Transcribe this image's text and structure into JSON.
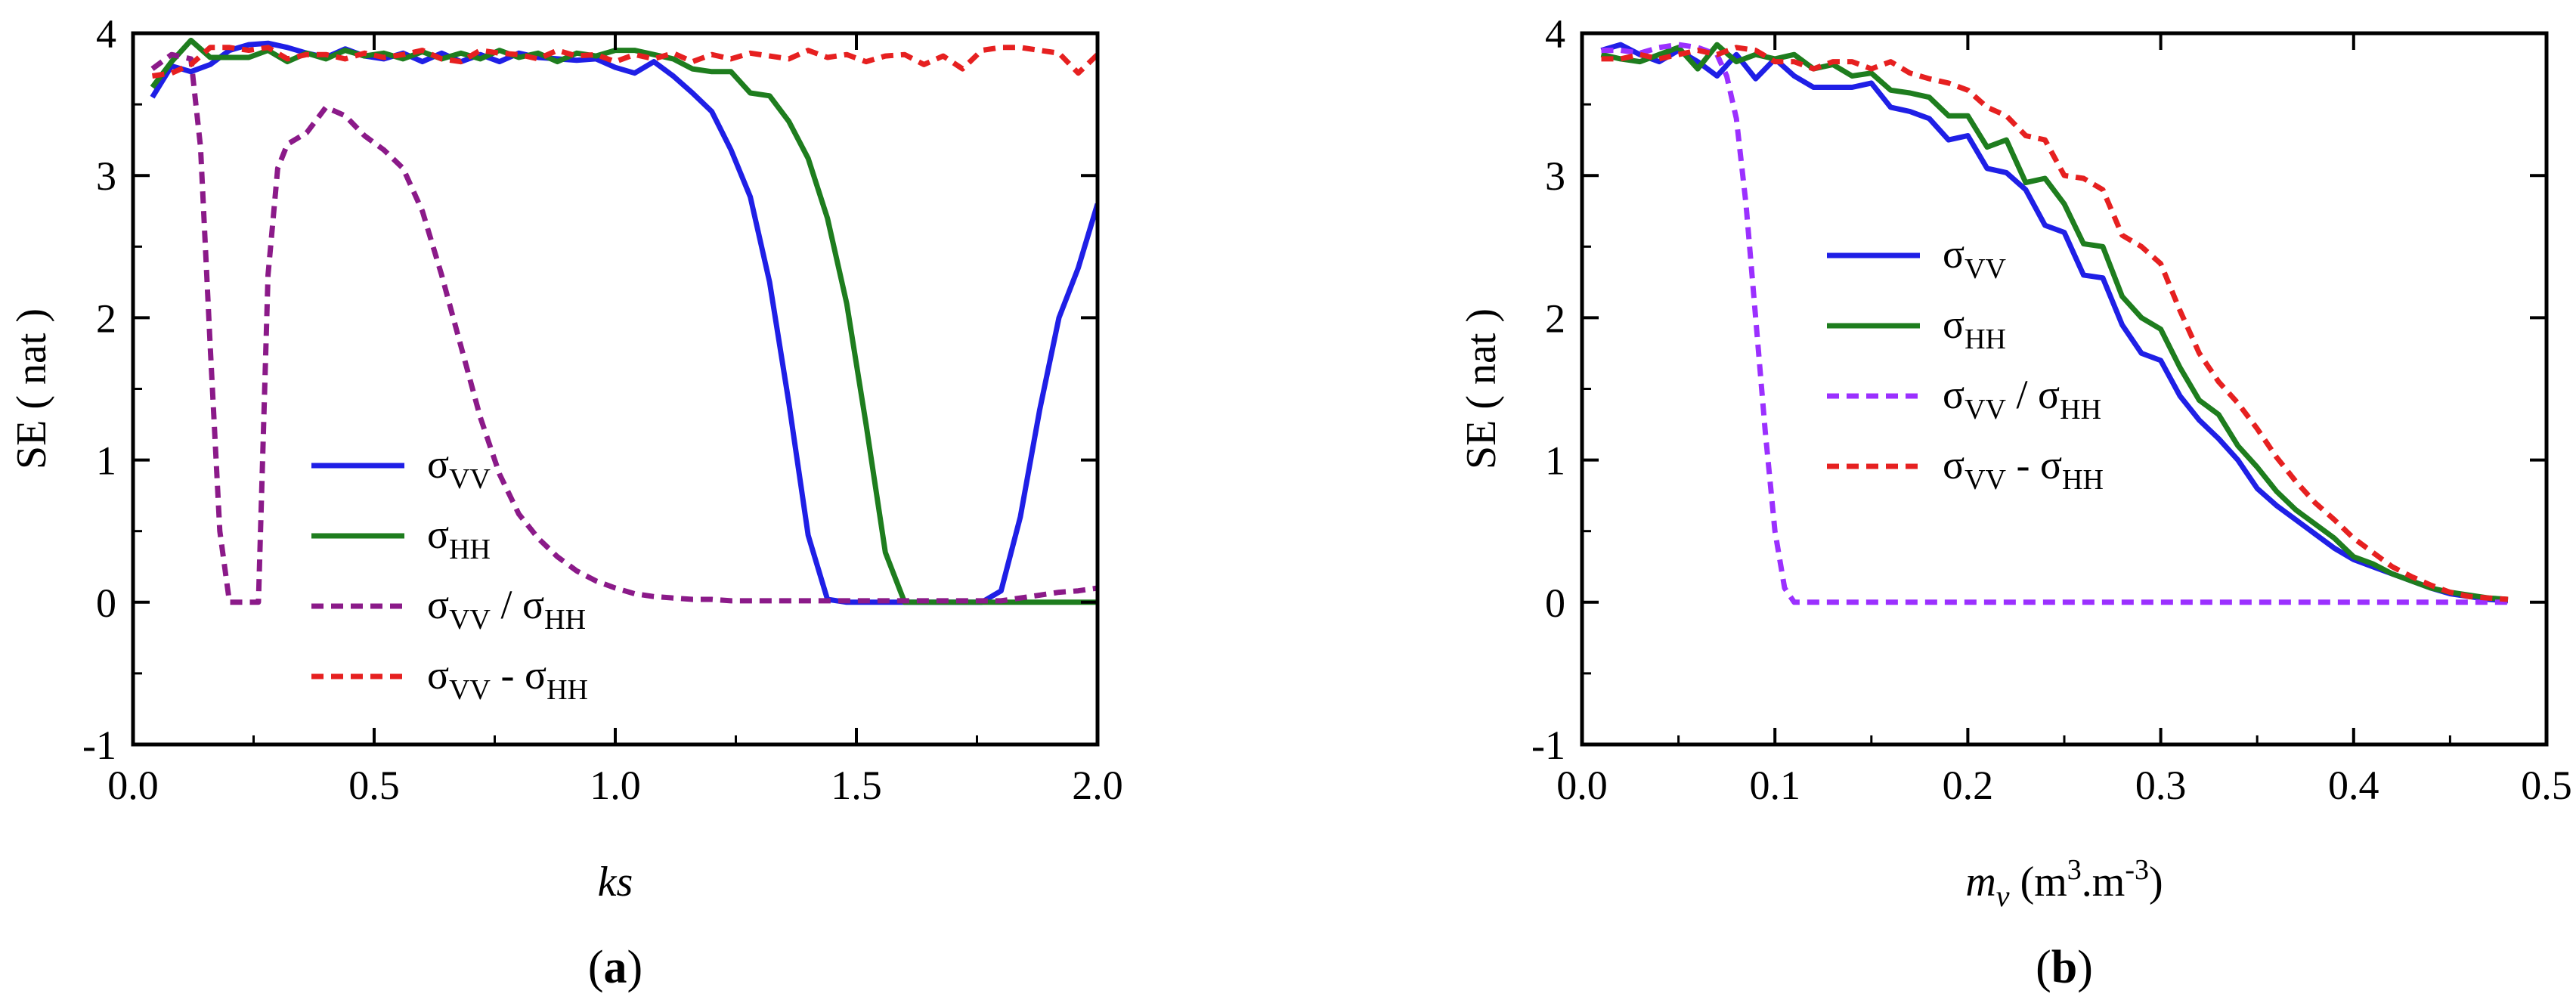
{
  "chart_data": [
    {
      "panel_label": {
        "open": "(",
        "letter": "a",
        "close": ")"
      },
      "type": "line",
      "xlabel": "ks",
      "ylabel": "SE ( nat )",
      "xlim": [
        0.0,
        2.0
      ],
      "ylim": [
        -1,
        4
      ],
      "xticks": [
        0.0,
        0.5,
        1.0,
        1.5,
        2.0
      ],
      "xtick_labels": [
        "0.0",
        "0.5",
        "1.0",
        "1.5",
        "2.0"
      ],
      "yticks": [
        -1,
        0,
        1,
        2,
        3,
        4
      ],
      "ytick_labels": [
        "-1",
        "0",
        "1",
        "2",
        "3",
        "4"
      ],
      "legend_position": "lower-left",
      "series": [
        {
          "name": "σVV",
          "label": {
            "base": "σ",
            "sub": "VV"
          },
          "color": "#1f1fe6",
          "dash": "solid",
          "x": [
            0.04,
            0.08,
            0.12,
            0.16,
            0.2,
            0.24,
            0.28,
            0.32,
            0.36,
            0.4,
            0.44,
            0.48,
            0.52,
            0.56,
            0.6,
            0.64,
            0.68,
            0.72,
            0.76,
            0.8,
            0.84,
            0.88,
            0.92,
            0.96,
            1.0,
            1.04,
            1.08,
            1.12,
            1.16,
            1.2,
            1.24,
            1.28,
            1.32,
            1.36,
            1.4,
            1.44,
            1.48,
            1.52,
            1.56,
            1.6,
            1.64,
            1.68,
            1.72,
            1.76,
            1.8,
            1.84,
            1.88,
            1.92,
            1.96,
            2.0
          ],
          "values": [
            3.55,
            3.77,
            3.73,
            3.78,
            3.88,
            3.92,
            3.93,
            3.9,
            3.86,
            3.83,
            3.89,
            3.84,
            3.82,
            3.86,
            3.8,
            3.86,
            3.8,
            3.85,
            3.8,
            3.86,
            3.83,
            3.82,
            3.81,
            3.82,
            3.76,
            3.72,
            3.8,
            3.7,
            3.58,
            3.45,
            3.18,
            2.85,
            2.25,
            1.4,
            0.47,
            0.02,
            0.0,
            0.0,
            0.0,
            0.0,
            0.0,
            0.0,
            0.0,
            0.0,
            0.08,
            0.6,
            1.35,
            2.0,
            2.35,
            2.8
          ]
        },
        {
          "name": "σHH",
          "label": {
            "base": "σ",
            "sub": "HH"
          },
          "color": "#1e7d1e",
          "dash": "solid",
          "x": [
            0.04,
            0.08,
            0.12,
            0.16,
            0.2,
            0.24,
            0.28,
            0.32,
            0.36,
            0.4,
            0.44,
            0.48,
            0.52,
            0.56,
            0.6,
            0.64,
            0.68,
            0.72,
            0.76,
            0.8,
            0.84,
            0.88,
            0.92,
            0.96,
            1.0,
            1.04,
            1.08,
            1.12,
            1.16,
            1.2,
            1.24,
            1.28,
            1.32,
            1.36,
            1.4,
            1.44,
            1.48,
            1.52,
            1.56,
            1.6,
            1.64,
            1.68,
            1.72,
            1.76,
            1.8,
            1.84,
            1.88,
            1.92,
            1.96,
            2.0
          ],
          "values": [
            3.62,
            3.8,
            3.95,
            3.83,
            3.83,
            3.83,
            3.88,
            3.8,
            3.86,
            3.82,
            3.88,
            3.84,
            3.86,
            3.82,
            3.87,
            3.82,
            3.86,
            3.82,
            3.88,
            3.83,
            3.86,
            3.8,
            3.86,
            3.84,
            3.88,
            3.88,
            3.85,
            3.82,
            3.75,
            3.73,
            3.73,
            3.58,
            3.56,
            3.38,
            3.12,
            2.7,
            2.1,
            1.25,
            0.35,
            0.0,
            0.0,
            0.0,
            0.0,
            0.0,
            0.0,
            0.0,
            0.0,
            0.0,
            0.0,
            0.0
          ]
        },
        {
          "name": "σVV / σHH",
          "label": {
            "base": "σ",
            "sub": "VV",
            "mid": " / σ",
            "sub2": "HH"
          },
          "color": "#8b1a89",
          "dash": "dashed",
          "x": [
            0.04,
            0.08,
            0.12,
            0.14,
            0.16,
            0.18,
            0.2,
            0.22,
            0.24,
            0.26,
            0.28,
            0.3,
            0.32,
            0.36,
            0.4,
            0.44,
            0.48,
            0.52,
            0.56,
            0.6,
            0.64,
            0.68,
            0.72,
            0.76,
            0.8,
            0.84,
            0.88,
            0.92,
            0.96,
            1.0,
            1.04,
            1.08,
            1.12,
            1.16,
            1.2,
            1.24,
            1.28,
            1.32,
            1.36,
            1.4,
            1.44,
            1.48,
            1.52,
            1.56,
            1.6,
            1.64,
            1.68,
            1.72,
            1.76,
            1.8,
            1.84,
            1.88,
            1.92,
            1.96,
            2.0
          ],
          "values": [
            3.75,
            3.85,
            3.82,
            3.2,
            1.8,
            0.5,
            0.0,
            0.0,
            0.0,
            0.0,
            2.3,
            3.05,
            3.22,
            3.3,
            3.48,
            3.42,
            3.28,
            3.18,
            3.05,
            2.75,
            2.3,
            1.8,
            1.3,
            0.9,
            0.62,
            0.45,
            0.32,
            0.22,
            0.15,
            0.1,
            0.06,
            0.04,
            0.03,
            0.02,
            0.02,
            0.01,
            0.01,
            0.01,
            0.01,
            0.01,
            0.01,
            0.01,
            0.01,
            0.01,
            0.01,
            0.01,
            0.01,
            0.01,
            0.01,
            0.01,
            0.03,
            0.05,
            0.07,
            0.08,
            0.1
          ]
        },
        {
          "name": "σVV - σHH",
          "label": {
            "base": "σ",
            "sub": "VV",
            "mid": " - σ",
            "sub2": "HH"
          },
          "color": "#e62020",
          "dash": "dashed",
          "x": [
            0.04,
            0.08,
            0.12,
            0.16,
            0.2,
            0.24,
            0.28,
            0.32,
            0.36,
            0.4,
            0.44,
            0.48,
            0.52,
            0.56,
            0.6,
            0.64,
            0.68,
            0.72,
            0.76,
            0.8,
            0.84,
            0.88,
            0.92,
            0.96,
            1.0,
            1.04,
            1.08,
            1.12,
            1.16,
            1.2,
            1.24,
            1.28,
            1.32,
            1.36,
            1.4,
            1.44,
            1.48,
            1.52,
            1.56,
            1.6,
            1.64,
            1.68,
            1.72,
            1.76,
            1.8,
            1.84,
            1.88,
            1.92,
            1.96,
            2.0
          ],
          "values": [
            3.7,
            3.72,
            3.78,
            3.9,
            3.9,
            3.88,
            3.9,
            3.82,
            3.85,
            3.85,
            3.82,
            3.86,
            3.83,
            3.85,
            3.88,
            3.82,
            3.8,
            3.88,
            3.86,
            3.85,
            3.82,
            3.88,
            3.84,
            3.85,
            3.8,
            3.85,
            3.82,
            3.86,
            3.8,
            3.85,
            3.82,
            3.86,
            3.84,
            3.82,
            3.88,
            3.83,
            3.85,
            3.8,
            3.84,
            3.85,
            3.78,
            3.84,
            3.75,
            3.88,
            3.9,
            3.9,
            3.88,
            3.86,
            3.72,
            3.85
          ]
        }
      ]
    },
    {
      "panel_label": {
        "open": "(",
        "letter": "b",
        "close": ")"
      },
      "type": "line",
      "xlabel": "mv (m3.m-3)",
      "xlabel_parts": {
        "var": "m",
        "var_sub": "v",
        "pre": "  (m",
        "sup1": "3",
        "mid": ".m",
        "sup2": "-3",
        "post": ")"
      },
      "ylabel": "SE ( nat )",
      "xlim": [
        0.0,
        0.5
      ],
      "ylim": [
        -1,
        4
      ],
      "xticks": [
        0.0,
        0.1,
        0.2,
        0.3,
        0.4,
        0.5
      ],
      "xtick_labels": [
        "0.0",
        "0.1",
        "0.2",
        "0.3",
        "0.4",
        "0.5"
      ],
      "yticks": [
        -1,
        0,
        1,
        2,
        3,
        4
      ],
      "ytick_labels": [
        "-1",
        "0",
        "1",
        "2",
        "3",
        "4"
      ],
      "legend_position": "middle-left",
      "series": [
        {
          "name": "σVV",
          "label": {
            "base": "σ",
            "sub": "VV"
          },
          "color": "#1f1fe6",
          "dash": "solid",
          "x": [
            0.01,
            0.02,
            0.03,
            0.04,
            0.05,
            0.06,
            0.07,
            0.08,
            0.09,
            0.1,
            0.11,
            0.12,
            0.13,
            0.14,
            0.15,
            0.16,
            0.17,
            0.18,
            0.19,
            0.2,
            0.21,
            0.22,
            0.23,
            0.24,
            0.25,
            0.26,
            0.27,
            0.28,
            0.29,
            0.3,
            0.31,
            0.32,
            0.33,
            0.34,
            0.35,
            0.36,
            0.37,
            0.38,
            0.39,
            0.4,
            0.41,
            0.42,
            0.43,
            0.44,
            0.45,
            0.46,
            0.47,
            0.48
          ],
          "values": [
            3.88,
            3.92,
            3.85,
            3.8,
            3.88,
            3.8,
            3.7,
            3.85,
            3.68,
            3.82,
            3.7,
            3.62,
            3.62,
            3.62,
            3.65,
            3.48,
            3.45,
            3.4,
            3.25,
            3.28,
            3.05,
            3.02,
            2.9,
            2.65,
            2.6,
            2.3,
            2.28,
            1.95,
            1.75,
            1.7,
            1.45,
            1.28,
            1.15,
            1.0,
            0.8,
            0.68,
            0.58,
            0.48,
            0.38,
            0.3,
            0.25,
            0.2,
            0.15,
            0.1,
            0.06,
            0.04,
            0.02,
            0.01
          ]
        },
        {
          "name": "σHH",
          "label": {
            "base": "σ",
            "sub": "HH"
          },
          "color": "#1e7d1e",
          "dash": "solid",
          "x": [
            0.01,
            0.02,
            0.03,
            0.04,
            0.05,
            0.06,
            0.07,
            0.08,
            0.09,
            0.1,
            0.11,
            0.12,
            0.13,
            0.14,
            0.15,
            0.16,
            0.17,
            0.18,
            0.19,
            0.2,
            0.21,
            0.22,
            0.23,
            0.24,
            0.25,
            0.26,
            0.27,
            0.28,
            0.29,
            0.3,
            0.31,
            0.32,
            0.33,
            0.34,
            0.35,
            0.36,
            0.37,
            0.38,
            0.39,
            0.4,
            0.41,
            0.42,
            0.43,
            0.44,
            0.45,
            0.46,
            0.47,
            0.48
          ],
          "values": [
            3.85,
            3.82,
            3.8,
            3.85,
            3.9,
            3.75,
            3.92,
            3.8,
            3.85,
            3.82,
            3.85,
            3.75,
            3.78,
            3.7,
            3.72,
            3.6,
            3.58,
            3.55,
            3.42,
            3.42,
            3.2,
            3.25,
            2.95,
            2.98,
            2.8,
            2.52,
            2.5,
            2.15,
            2.0,
            1.92,
            1.65,
            1.42,
            1.32,
            1.1,
            0.95,
            0.78,
            0.65,
            0.55,
            0.45,
            0.32,
            0.27,
            0.2,
            0.15,
            0.1,
            0.07,
            0.05,
            0.03,
            0.02
          ]
        },
        {
          "name": "σVV / σHH",
          "label": {
            "base": "σ",
            "sub": "VV",
            "mid": " / σ",
            "sub2": "HH"
          },
          "color": "#9b30ff",
          "dash": "dashed",
          "x": [
            0.01,
            0.02,
            0.03,
            0.04,
            0.05,
            0.06,
            0.07,
            0.075,
            0.08,
            0.085,
            0.09,
            0.095,
            0.1,
            0.105,
            0.11,
            0.12,
            0.15,
            0.2,
            0.25,
            0.3,
            0.35,
            0.4,
            0.45,
            0.48
          ],
          "values": [
            3.88,
            3.88,
            3.86,
            3.9,
            3.92,
            3.9,
            3.85,
            3.7,
            3.4,
            2.8,
            2.0,
            1.2,
            0.5,
            0.1,
            0.0,
            0.0,
            0.0,
            0.0,
            0.0,
            0.0,
            0.0,
            0.0,
            0.0,
            0.0
          ]
        },
        {
          "name": "σVV - σHH",
          "label": {
            "base": "σ",
            "sub": "VV",
            "mid": " - σ",
            "sub2": "HH"
          },
          "color": "#e62020",
          "dash": "dashed",
          "x": [
            0.01,
            0.02,
            0.03,
            0.04,
            0.05,
            0.06,
            0.07,
            0.08,
            0.09,
            0.1,
            0.11,
            0.12,
            0.13,
            0.14,
            0.15,
            0.16,
            0.17,
            0.18,
            0.19,
            0.2,
            0.21,
            0.22,
            0.23,
            0.24,
            0.25,
            0.26,
            0.27,
            0.28,
            0.29,
            0.3,
            0.31,
            0.32,
            0.33,
            0.34,
            0.35,
            0.36,
            0.37,
            0.38,
            0.39,
            0.4,
            0.41,
            0.42,
            0.43,
            0.44,
            0.45,
            0.46,
            0.47,
            0.48
          ],
          "values": [
            3.82,
            3.82,
            3.85,
            3.82,
            3.85,
            3.88,
            3.85,
            3.9,
            3.88,
            3.8,
            3.8,
            3.75,
            3.8,
            3.8,
            3.75,
            3.8,
            3.72,
            3.68,
            3.65,
            3.6,
            3.48,
            3.42,
            3.28,
            3.25,
            3.0,
            2.98,
            2.9,
            2.58,
            2.5,
            2.38,
            2.05,
            1.75,
            1.55,
            1.4,
            1.22,
            1.02,
            0.85,
            0.7,
            0.58,
            0.45,
            0.35,
            0.25,
            0.18,
            0.12,
            0.07,
            0.04,
            0.03,
            0.02
          ]
        }
      ]
    }
  ]
}
